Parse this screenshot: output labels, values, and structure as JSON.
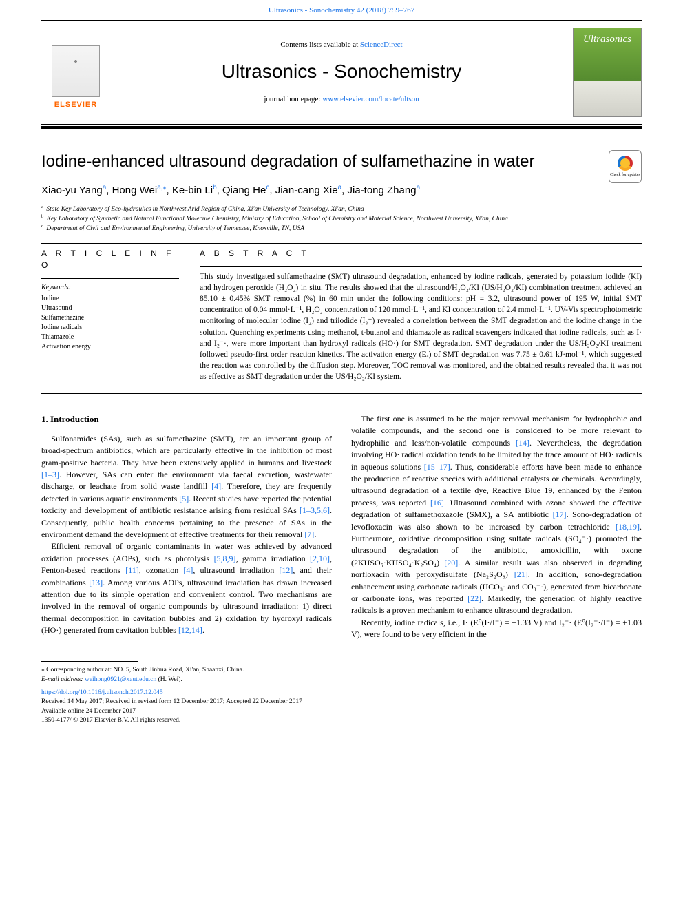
{
  "header": {
    "citation_link_text": "Ultrasonics - Sonochemistry 42 (2018) 759–767",
    "contents_pre": "Contents lists available at ",
    "contents_link": "ScienceDirect",
    "journal_name": "Ultrasonics - Sonochemistry",
    "homepage_pre": "journal homepage: ",
    "homepage_link": "www.elsevier.com/locate/ultson",
    "elsevier_label": "ELSEVIER",
    "cover_title": "Ultrasonics"
  },
  "paper": {
    "title": "Iodine-enhanced ultrasound degradation of sulfamethazine in water",
    "check_updates_label": "Check for updates",
    "authors_html": "Xiao-yu Yang<sup class='affsup'>a</sup>, Hong Wei<sup class='affsup'>a,</sup><sup>⁎</sup>, Ke-bin Li<sup class='affsup'>b</sup>, Qiang He<sup class='affsup'>c</sup>, Jian-cang Xie<sup class='affsup'>a</sup>, Jia-tong Zhang<sup class='affsup'>a</sup>",
    "affiliations": [
      {
        "sup": "a",
        "text": "State Key Laboratory of Eco-hydraulics in Northwest Arid Region of China, Xi'an University of Technology, Xi'an, China"
      },
      {
        "sup": "b",
        "text": "Key Laboratory of Synthetic and Natural Functional Molecule Chemistry, Ministry of Education, School of Chemistry and Material Science, Northwest University, Xi'an, China"
      },
      {
        "sup": "c",
        "text": "Department of Civil and Environmental Engineering, University of Tennessee, Knoxville, TN, USA"
      }
    ]
  },
  "info": {
    "article_info_heading": "A R T I C L E  I N F O",
    "abstract_heading": "A B S T R A C T",
    "keywords_label": "Keywords:",
    "keywords": [
      "Iodine",
      "Ultrasound",
      "Sulfamethazine",
      "Iodine radicals",
      "Thiamazole",
      "Activation energy"
    ],
    "abstract": "This study investigated sulfamethazine (SMT) ultrasound degradation, enhanced by iodine radicals, generated by potassium iodide (KI) and hydrogen peroxide (H₂O₂) in situ. The results showed that the ultrasound/H₂O₂/KI (US/H₂O₂/KI) combination treatment achieved an 85.10 ± 0.45% SMT removal (%) in 60 min under the following conditions: pH = 3.2, ultrasound power of 195 W, initial SMT concentration of 0.04 mmol·L⁻¹, H₂O₂ concentration of 120 mmol·L⁻¹, and KI concentration of 2.4 mmol·L⁻¹. UV-Vis spectrophotometric monitoring of molecular iodine (I₂) and triiodide (I₃⁻) revealed a correlation between the SMT degradation and the iodine change in the solution. Quenching experiments using methanol, t-butanol and thiamazole as radical scavengers indicated that iodine radicals, such as I· and I₂⁻·, were more important than hydroxyl radicals (HO·) for SMT degradation. SMT degradation under the US/H₂O₂/KI treatment followed pseudo-first order reaction kinetics. The activation energy (Eₐ) of SMT degradation was 7.75 ± 0.61 kJ·mol⁻¹, which suggested the reaction was controlled by the diffusion step. Moreover, TOC removal was monitored, and the obtained results revealed that it was not as effective as SMT degradation under the US/H₂O₂/KI system."
  },
  "body": {
    "intro_heading": "1. Introduction",
    "p1": "Sulfonamides (SAs), such as sulfamethazine (SMT), are an important group of broad-spectrum antibiotics, which are particularly effective in the inhibition of most gram-positive bacteria. They have been extensively applied in humans and livestock [1–3]. However, SAs can enter the environment via faecal excretion, wastewater discharge, or leachate from solid waste landfill [4]. Therefore, they are frequently detected in various aquatic environments [5]. Recent studies have reported the potential toxicity and development of antibiotic resistance arising from residual SAs [1–3,5,6]. Consequently, public health concerns pertaining to the presence of SAs in the environment demand the development of effective treatments for their removal [7].",
    "p2": "Efficient removal of organic contaminants in water was achieved by advanced oxidation processes (AOPs), such as photolysis [5,8,9], gamma irradiation [2,10], Fenton-based reactions [11], ozonation [4], ultrasound irradiation [12], and their combinations [13]. Among various AOPs, ultrasound irradiation has drawn increased attention due to its simple operation and convenient control. Two mechanisms are involved in the removal of organic compounds by ultrasound irradiation: 1) direct thermal decomposition in cavitation bubbles and 2) oxidation by hydroxyl radicals (HO·) generated from cavitation bubbles [12,14].",
    "p3": "The first one is assumed to be the major removal mechanism for hydrophobic and volatile compounds, and the second one is considered to be more relevant to hydrophilic and less/non-volatile compounds [14]. Nevertheless, the degradation involving HO· radical oxidation tends to be limited by the trace amount of HO· radicals in aqueous solutions [15–17]. Thus, considerable efforts have been made to enhance the production of reactive species with additional catalysts or chemicals. Accordingly, ultrasound degradation of a textile dye, Reactive Blue 19, enhanced by the Fenton process, was reported [16]. Ultrasound combined with ozone showed the effective degradation of sulfamethoxazole (SMX), a SA antibiotic [17]. Sono-degradation of levofloxacin was also shown to be increased by carbon tetrachloride [18,19]. Furthermore, oxidative decomposition using sulfate radicals (SO₄⁻·) promoted the ultrasound degradation of the antibiotic, amoxicillin, with oxone (2KHSO₅·KHSO₄·K₂SO₄) [20]. A similar result was also observed in degrading norfloxacin with peroxydisulfate (Na₂S₂O₈) [21]. In addition, sono-degradation enhancement using carbonate radicals (HCO₃· and CO₃⁻·), generated from bicarbonate or carbonate ions, was reported [22]. Markedly, the generation of highly reactive radicals is a proven mechanism to enhance ultrasound degradation.",
    "p4": "Recently, iodine radicals, i.e., I· (E⁰(I·/I⁻) = +1.33 V) and I₂⁻· (E⁰(I₂⁻·/I⁻) = +1.03 V), were found to be very efficient in the",
    "refs": {
      "r1": "[1–3]",
      "r4": "[4]",
      "r5": "[5]",
      "r6": "[1–3,5,6]",
      "r7": "[7]",
      "r8": "[5,8,9]",
      "r9": "[2,10]",
      "r11": "[11]",
      "r12": "[12]",
      "r13": "[13]",
      "r14a": "[12,14]",
      "r14b": "[14]",
      "r15": "[15–17]",
      "r16": "[16]",
      "r17": "[17]",
      "r18": "[18,19]",
      "r20": "[20]",
      "r21": "[21]",
      "r22": "[22]"
    }
  },
  "footnotes": {
    "corresponding": "⁎ Corresponding author at: NO. 5, South Jinhua Road, Xi'an, Shaanxi, China.",
    "email_label": "E-mail address: ",
    "email": "weihong0921@xaut.edu.cn",
    "email_name": " (H. Wei)."
  },
  "doi": {
    "link": "https://doi.org/10.1016/j.ultsonch.2017.12.045",
    "received": "Received 14 May 2017; Received in revised form 12 December 2017; Accepted 22 December 2017",
    "available": "Available online 24 December 2017",
    "copyright": "1350-4177/ © 2017 Elsevier B.V. All rights reserved."
  },
  "colors": {
    "link": "#1a73e8",
    "elsevier_orange": "#ff6600",
    "cover_green_top": "#7cb342",
    "cover_green_bottom": "#558b2f"
  }
}
